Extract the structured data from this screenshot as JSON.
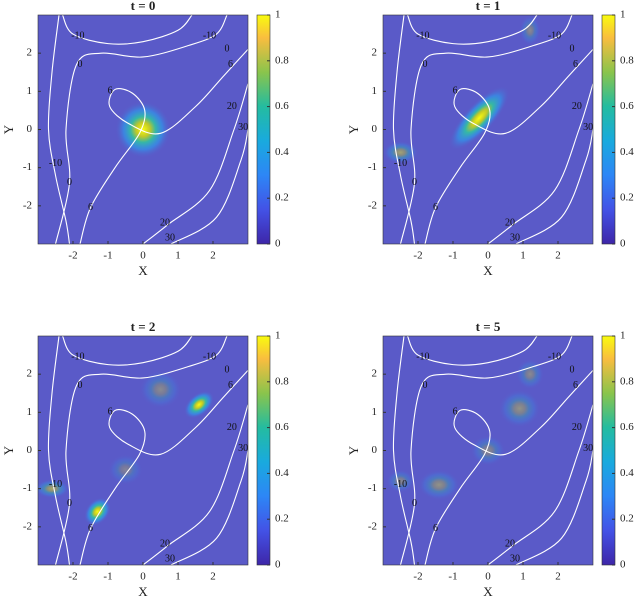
{
  "chart_data": [
    {
      "type": "heatmap",
      "title": "t = 0",
      "xlabel": "X",
      "ylabel": "Y",
      "xlim": [
        -3,
        3
      ],
      "ylim": [
        -3,
        3
      ],
      "xticks": [
        -2,
        -1,
        0,
        1,
        2
      ],
      "yticks": [
        -2,
        -1,
        0,
        1,
        2
      ],
      "colorbar": {
        "lim": [
          0,
          1
        ],
        "ticks": [
          0,
          0.2,
          0.4,
          0.6,
          0.8,
          1
        ]
      },
      "contour_labels": [
        -10,
        0,
        -10,
        0,
        6,
        6,
        -10,
        0,
        6,
        20,
        30,
        20,
        30
      ]
    },
    {
      "type": "heatmap",
      "title": "t = 1",
      "xlabel": "X",
      "ylabel": "Y",
      "xlim": [
        -3,
        3
      ],
      "ylim": [
        -3,
        3
      ],
      "xticks": [
        -2,
        -1,
        0,
        1,
        2
      ],
      "yticks": [
        -2,
        -1,
        0,
        1,
        2
      ],
      "colorbar": {
        "lim": [
          0,
          1
        ],
        "ticks": [
          0,
          0.2,
          0.4,
          0.6,
          0.8,
          1
        ]
      },
      "contour_labels": [
        -10,
        0,
        -10,
        0,
        6,
        6,
        -10,
        0,
        6,
        20,
        30,
        20,
        30
      ]
    },
    {
      "type": "heatmap",
      "title": "t = 2",
      "xlabel": "X",
      "ylabel": "Y",
      "xlim": [
        -3,
        3
      ],
      "ylim": [
        -3,
        3
      ],
      "xticks": [
        -2,
        -1,
        0,
        1,
        2
      ],
      "yticks": [
        -2,
        -1,
        0,
        1,
        2
      ],
      "colorbar": {
        "lim": [
          0,
          1
        ],
        "ticks": [
          0,
          0.2,
          0.4,
          0.6,
          0.8,
          1
        ]
      },
      "contour_labels": [
        -10,
        0,
        -10,
        0,
        6,
        6,
        -10,
        0,
        6,
        20,
        30,
        20,
        30
      ]
    },
    {
      "type": "heatmap",
      "title": "t = 5",
      "xlabel": "X",
      "ylabel": "Y",
      "xlim": [
        -3,
        3
      ],
      "ylim": [
        -3,
        3
      ],
      "xticks": [
        -2,
        -1,
        0,
        1,
        2
      ],
      "yticks": [
        -2,
        -1,
        0,
        1,
        2
      ],
      "colorbar": {
        "lim": [
          0,
          1
        ],
        "ticks": [
          0,
          0.2,
          0.4,
          0.6,
          0.8,
          1
        ]
      },
      "contour_labels": [
        -10,
        0,
        -10,
        0,
        6,
        6,
        -10,
        0,
        6,
        20,
        30,
        20,
        30
      ]
    }
  ]
}
